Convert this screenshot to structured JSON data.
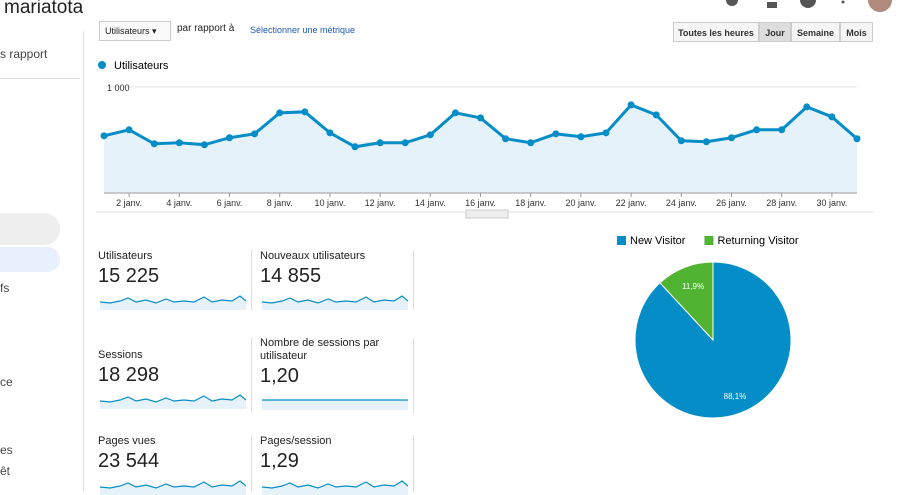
{
  "header": {
    "site": "mariatotal.com"
  },
  "sidebar": [
    "s rapport",
    "fs",
    "ce",
    "es",
    "êt"
  ],
  "controls": {
    "metric": "Utilisateurs",
    "compare": "par rapport à",
    "select": "Sélectionner une métrique",
    "periods": [
      "Toutes les heures",
      "Jour",
      "Semaine",
      "Mois"
    ]
  },
  "chart_data": [
    {
      "type": "line",
      "categories": [
        null,
        "2 janv.",
        null,
        "4 janv.",
        null,
        "6 janv.",
        null,
        "8 janv.",
        null,
        "10 janv.",
        null,
        "12 janv.",
        null,
        "14 janv.",
        null,
        "16 janv.",
        null,
        "18 janv.",
        null,
        "20 janv.",
        null,
        "22 janv.",
        null,
        "24 janv.",
        null,
        "26 janv.",
        null,
        "28 janv.",
        null,
        "30 janv.",
        null
      ],
      "series": [
        {
          "name": "Utilisateurs",
          "color": "#058dc7",
          "values": [
            562,
            616,
            491,
            500,
            482,
            545,
            580,
            768,
            777,
            589,
            464,
            500,
            500,
            571,
            768,
            723,
            536,
            500,
            580,
            554,
            589,
            839,
            750,
            518,
            509,
            545,
            616,
            616,
            821,
            732,
            536
          ]
        }
      ],
      "ylim": [
        50,
        1080
      ],
      "yticks": [
        500,
        {
          "value": 1000,
          "label": "1 000"
        }
      ],
      "grid": true
    },
    {
      "type": "pie",
      "categories": [
        "New Visitor",
        "Returning Visitor"
      ],
      "values": [
        88.1,
        11.9
      ],
      "value_labels": [
        "88,1%",
        "11,9%"
      ],
      "colors": [
        "#058dc7",
        "#50b432"
      ],
      "legend": "top"
    }
  ],
  "metrics": [
    {
      "label": "Utilisateurs",
      "value": "15 225"
    },
    {
      "label": "Nouveaux utilisateurs",
      "value": "14 855"
    },
    {
      "label": "Sessions",
      "value": "18 298"
    },
    {
      "label": "Nombre de sessions par utilisateur",
      "value": "1,20"
    },
    {
      "label": "Pages vues",
      "value": "23 544"
    },
    {
      "label": "Pages/session",
      "value": "1,29"
    }
  ]
}
